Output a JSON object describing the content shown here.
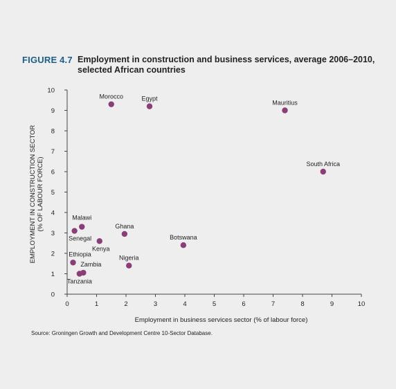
{
  "figure": {
    "label": "FIGURE 4.7",
    "title": "Employment in construction and business services, average 2006–2010, selected African countries",
    "source": "Source: Groningen Growth and Development Centre 10-Sector Database."
  },
  "colors": {
    "marker": "#8b3d78",
    "axis": "#444444",
    "label": "#1b5e8c"
  },
  "chart_data": {
    "type": "scatter",
    "title": "Employment in construction and business services, average 2006–2010, selected African countries",
    "xlabel": "Employment in business services sector (% of labour force)",
    "ylabel_lines": [
      "EMPLOYMENT IN CONSTRUCTION SECTOR",
      "(% OF LABOUR FORCE)"
    ],
    "xlim": [
      0,
      10
    ],
    "ylim": [
      0,
      10
    ],
    "xticks": [
      "0",
      "1",
      "2",
      "3",
      "4",
      "5",
      "6",
      "7",
      "8",
      "9",
      "10"
    ],
    "yticks": [
      "0",
      "1",
      "2",
      "3",
      "4",
      "5",
      "6",
      "7",
      "8",
      "9",
      "10"
    ],
    "grid": false,
    "points": [
      {
        "name": "Morocco",
        "x": 1.5,
        "y": 9.3
      },
      {
        "name": "Egypt",
        "x": 2.8,
        "y": 9.2
      },
      {
        "name": "Mauritius",
        "x": 7.4,
        "y": 9.0
      },
      {
        "name": "South Africa",
        "x": 8.7,
        "y": 6.0
      },
      {
        "name": "Malawi",
        "x": 0.5,
        "y": 3.3
      },
      {
        "name": "Senegal",
        "x": 0.25,
        "y": 3.1
      },
      {
        "name": "Ghana",
        "x": 1.95,
        "y": 2.95
      },
      {
        "name": "Kenya",
        "x": 1.1,
        "y": 2.6
      },
      {
        "name": "Botswana",
        "x": 3.95,
        "y": 2.4
      },
      {
        "name": "Ethiopia",
        "x": 0.2,
        "y": 1.55
      },
      {
        "name": "Nigeria",
        "x": 2.1,
        "y": 1.4
      },
      {
        "name": "Zambia",
        "x": 0.55,
        "y": 1.05
      },
      {
        "name": "Tanzania",
        "x": 0.42,
        "y": 1.0
      }
    ]
  }
}
